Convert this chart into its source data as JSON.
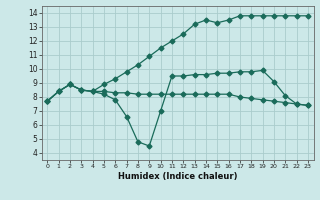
{
  "xlabel": "Humidex (Indice chaleur)",
  "bg_color": "#cce8e8",
  "grid_color": "#aacccc",
  "line_color": "#1a6b5a",
  "xlim": [
    -0.5,
    23.5
  ],
  "ylim": [
    3.5,
    14.5
  ],
  "xticks": [
    0,
    1,
    2,
    3,
    4,
    5,
    6,
    7,
    8,
    9,
    10,
    11,
    12,
    13,
    14,
    15,
    16,
    17,
    18,
    19,
    20,
    21,
    22,
    23
  ],
  "yticks": [
    4,
    5,
    6,
    7,
    8,
    9,
    10,
    11,
    12,
    13,
    14
  ],
  "line1_x": [
    0,
    1,
    2,
    3,
    4,
    5,
    6,
    7,
    8,
    9,
    10,
    11,
    12,
    13,
    14,
    15,
    16,
    17,
    18,
    19,
    20,
    21,
    22,
    23
  ],
  "line1_y": [
    7.7,
    8.4,
    8.9,
    8.5,
    8.4,
    8.9,
    9.3,
    9.8,
    10.3,
    10.9,
    11.5,
    12.0,
    12.5,
    13.2,
    13.5,
    13.3,
    13.5,
    13.8,
    13.8,
    13.8,
    13.8,
    13.8,
    13.8,
    13.8
  ],
  "line2_x": [
    0,
    1,
    2,
    3,
    4,
    5,
    6,
    7,
    8,
    9,
    10,
    11,
    12,
    13,
    14,
    15,
    16,
    17,
    18,
    19,
    20,
    21,
    22,
    23
  ],
  "line2_y": [
    7.7,
    8.4,
    8.9,
    8.5,
    8.4,
    8.4,
    8.3,
    8.3,
    8.2,
    8.2,
    8.2,
    8.2,
    8.2,
    8.2,
    8.2,
    8.2,
    8.2,
    8.0,
    7.9,
    7.8,
    7.7,
    7.6,
    7.5,
    7.4
  ],
  "line3_x": [
    0,
    1,
    2,
    3,
    4,
    5,
    6,
    7,
    8,
    9,
    10,
    11,
    12,
    13,
    14,
    15,
    16,
    17,
    18,
    19,
    20,
    21,
    22,
    23
  ],
  "line3_y": [
    7.7,
    8.4,
    8.9,
    8.5,
    8.4,
    8.2,
    7.8,
    6.6,
    4.8,
    4.5,
    7.0,
    9.5,
    9.5,
    9.6,
    9.6,
    9.7,
    9.7,
    9.8,
    9.8,
    9.9,
    9.1,
    8.1,
    7.5,
    7.4
  ]
}
